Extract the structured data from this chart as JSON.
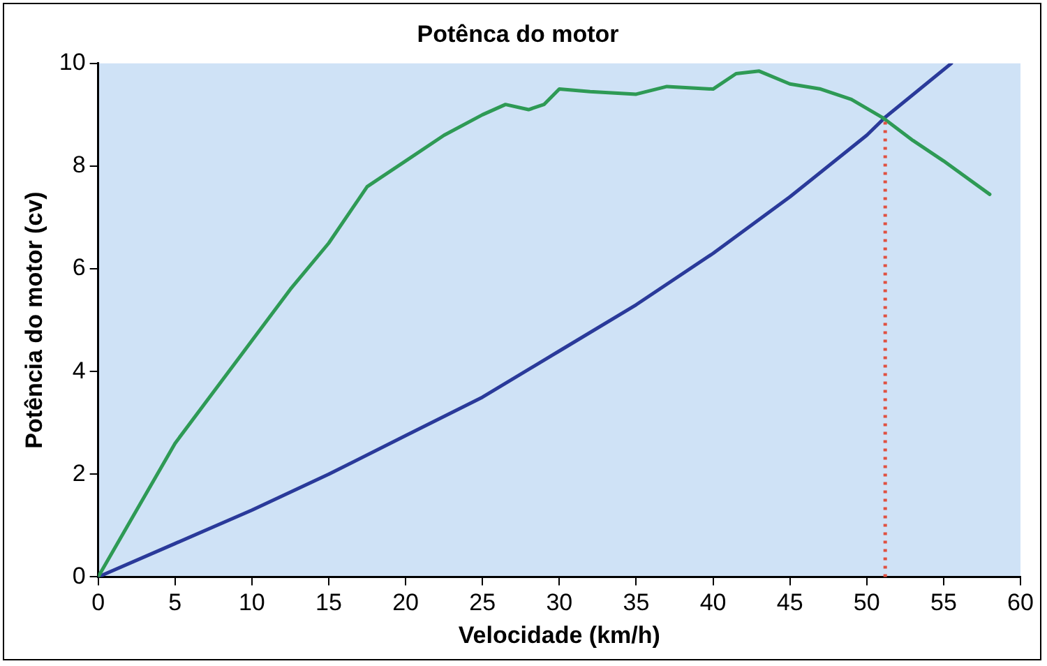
{
  "chart_data": {
    "type": "line",
    "title": "Potênca do motor",
    "xlabel": "Velocidade (km/h)",
    "ylabel": "Potência do motor (cv)",
    "xlim": [
      0,
      60
    ],
    "xticks": [
      0,
      5,
      10,
      15,
      20,
      25,
      30,
      35,
      40,
      45,
      50,
      55,
      60
    ],
    "ylim": [
      0,
      10
    ],
    "yticks": [
      0,
      2,
      4,
      6,
      8,
      10
    ],
    "grid": false,
    "legend": false,
    "marker": "none",
    "line_style": "solid",
    "series": [
      {
        "color": "#2e9a55",
        "x": [
          0,
          2.5,
          5,
          7.5,
          10,
          12.5,
          15,
          17.5,
          20,
          22.5,
          25,
          26.5,
          28,
          29,
          30,
          32,
          35,
          37,
          40,
          41.5,
          43,
          45,
          47,
          49,
          51,
          53,
          55,
          58
        ],
        "values": [
          0,
          1.3,
          2.6,
          3.6,
          4.6,
          5.6,
          6.5,
          7.6,
          8.1,
          8.6,
          9.0,
          9.2,
          9.1,
          9.2,
          9.5,
          9.45,
          9.4,
          9.55,
          9.5,
          9.8,
          9.85,
          9.6,
          9.5,
          9.3,
          8.95,
          8.5,
          8.1,
          7.45
        ]
      },
      {
        "color": "#2a3a9a",
        "x": [
          0,
          5,
          10,
          15,
          20,
          25,
          30,
          35,
          40,
          45,
          50,
          51.2,
          55.5
        ],
        "values": [
          0,
          0.65,
          1.3,
          2.0,
          2.75,
          3.5,
          4.4,
          5.3,
          6.3,
          7.4,
          8.6,
          8.95,
          10
        ]
      }
    ],
    "ref_lines": [
      {
        "axis": "x",
        "value": 51.2,
        "color": "#e05040",
        "line_style": "dotted"
      }
    ]
  }
}
